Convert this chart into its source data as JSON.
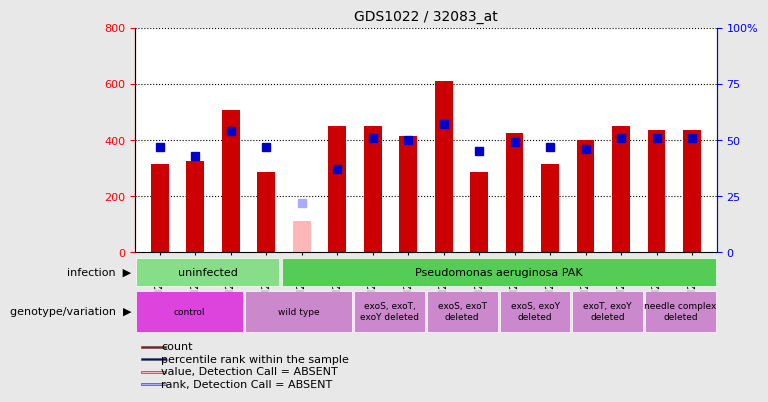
{
  "title": "GDS1022 / 32083_at",
  "samples": [
    "GSM24740",
    "GSM24741",
    "GSM24742",
    "GSM24743",
    "GSM24744",
    "GSM24745",
    "GSM24784",
    "GSM24785",
    "GSM24786",
    "GSM24787",
    "GSM24788",
    "GSM24789",
    "GSM24790",
    "GSM24791",
    "GSM24792",
    "GSM24793"
  ],
  "count_values": [
    315,
    325,
    505,
    285,
    null,
    450,
    450,
    415,
    610,
    285,
    425,
    315,
    400,
    450,
    435,
    435
  ],
  "count_absent": [
    null,
    null,
    null,
    null,
    110,
    null,
    null,
    null,
    null,
    null,
    null,
    null,
    null,
    null,
    null,
    null
  ],
  "rank_values": [
    47,
    43,
    54,
    47,
    null,
    37,
    51,
    50,
    57,
    45,
    49,
    47,
    46,
    51,
    51,
    51
  ],
  "rank_absent": [
    null,
    null,
    null,
    null,
    22,
    null,
    null,
    null,
    null,
    null,
    null,
    null,
    null,
    null,
    null,
    null
  ],
  "ylim_left": [
    0,
    800
  ],
  "ylim_right": [
    0,
    100
  ],
  "left_ticks": [
    0,
    200,
    400,
    600,
    800
  ],
  "right_ticks": [
    0,
    25,
    50,
    75,
    100
  ],
  "infection_groups": [
    {
      "label": "uninfected",
      "start": 0,
      "end": 4,
      "color": "#88dd88"
    },
    {
      "label": "Pseudomonas aeruginosa PAK",
      "start": 4,
      "end": 16,
      "color": "#55cc55"
    }
  ],
  "genotype_groups": [
    {
      "label": "control",
      "start": 0,
      "end": 3,
      "color": "#dd44dd"
    },
    {
      "label": "wild type",
      "start": 3,
      "end": 6,
      "color": "#cc88cc"
    },
    {
      "label": "exoS, exoT,\nexoY deleted",
      "start": 6,
      "end": 8,
      "color": "#cc88cc"
    },
    {
      "label": "exoS, exoT\ndeleted",
      "start": 8,
      "end": 10,
      "color": "#cc88cc"
    },
    {
      "label": "exoS, exoY\ndeleted",
      "start": 10,
      "end": 12,
      "color": "#cc88cc"
    },
    {
      "label": "exoT, exoY\ndeleted",
      "start": 12,
      "end": 14,
      "color": "#cc88cc"
    },
    {
      "label": "needle complex\ndeleted",
      "start": 14,
      "end": 16,
      "color": "#cc88cc"
    }
  ],
  "bar_color": "#cc0000",
  "bar_absent_color": "#ffb6b6",
  "rank_color": "#0000cc",
  "rank_absent_color": "#aaaaff",
  "bg_color": "#e8e8e8",
  "plot_bg": "#ffffff",
  "bar_width": 0.5,
  "rank_marker_size": 6
}
